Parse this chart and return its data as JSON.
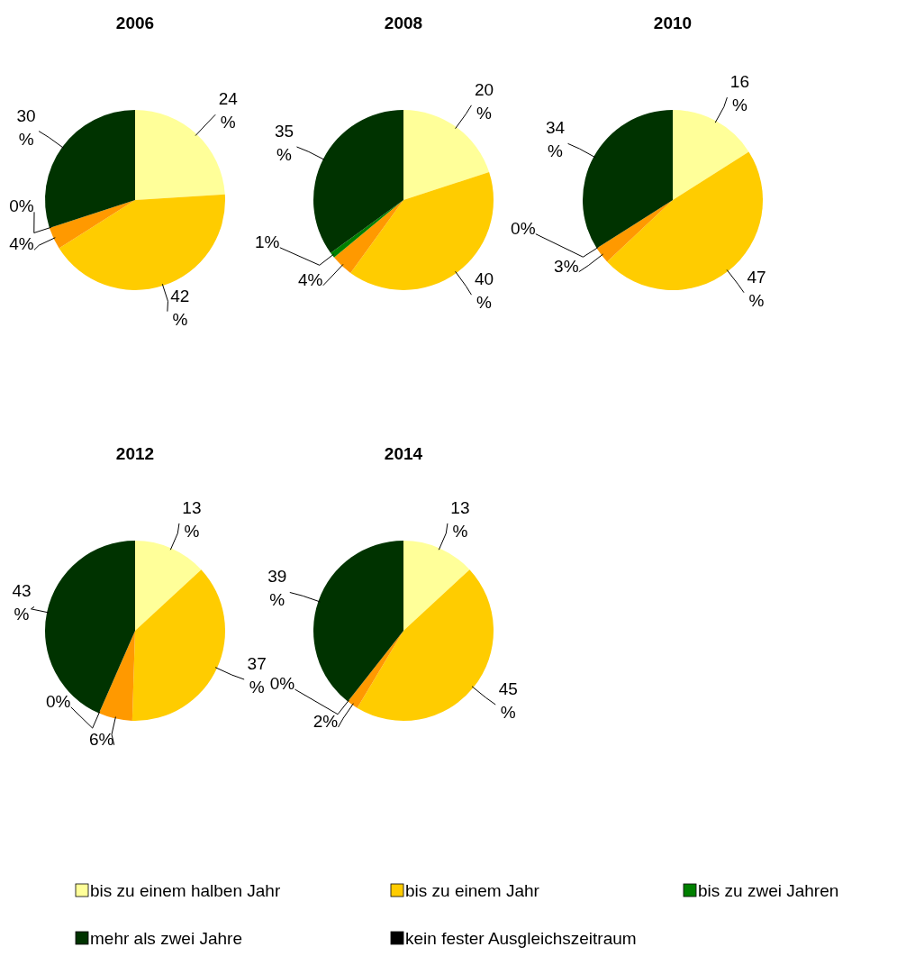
{
  "chart_data": [
    {
      "type": "pie",
      "title": "2006",
      "categories": [
        null,
        null,
        null,
        null,
        null
      ],
      "values": [
        24,
        42,
        4,
        0,
        30
      ],
      "colors": [
        "#ffff99",
        "#ffcc00",
        "#ff9900",
        "#008000",
        "#003300"
      ],
      "value_labels": [
        "24 %",
        "42 %",
        "4%",
        "0%",
        "30 %"
      ]
    },
    {
      "type": "pie",
      "title": "2008",
      "categories": [
        null,
        null,
        null,
        null,
        null
      ],
      "values": [
        20,
        40,
        4,
        1,
        35
      ],
      "colors": [
        "#ffff99",
        "#ffcc00",
        "#ff9900",
        "#008000",
        "#003300"
      ],
      "value_labels": [
        "20 %",
        "40 %",
        "4%",
        "1%",
        "35 %"
      ]
    },
    {
      "type": "pie",
      "title": "2010",
      "categories": [
        null,
        null,
        null,
        null,
        null
      ],
      "values": [
        16,
        47,
        3,
        0,
        34
      ],
      "colors": [
        "#ffff99",
        "#ffcc00",
        "#ff9900",
        "#008000",
        "#003300"
      ],
      "value_labels": [
        "16 %",
        "47 %",
        "3%",
        "0%",
        "34 %"
      ]
    },
    {
      "type": "pie",
      "title": "2012",
      "categories": [
        null,
        null,
        null,
        null,
        null
      ],
      "values": [
        13,
        37,
        6,
        0,
        43
      ],
      "colors": [
        "#ffff99",
        "#ffcc00",
        "#ff9900",
        "#008000",
        "#003300"
      ],
      "value_labels": [
        "13 %",
        "37 %",
        "6%",
        "0%",
        "43 %"
      ]
    },
    {
      "type": "pie",
      "title": "2014",
      "categories": [
        null,
        null,
        null,
        null,
        null
      ],
      "values": [
        13,
        45,
        2,
        0,
        39
      ],
      "colors": [
        "#ffff99",
        "#ffcc00",
        "#ff9900",
        "#008000",
        "#003300"
      ],
      "value_labels": [
        "13 %",
        "45 %",
        "2%",
        "0%",
        "39 %"
      ]
    },
    {
      "type": "other",
      "categories": [
        "bis zu einem halben Jahr",
        "bis zu einem Jahr",
        "bis zu zwei Jahren",
        "mehr als zwei Jahre",
        "kein fester Ausgleichszeitraum"
      ],
      "colors": [
        "#ffff99",
        "#ffcc00",
        "#008000",
        "#003300",
        "#000000"
      ]
    }
  ]
}
